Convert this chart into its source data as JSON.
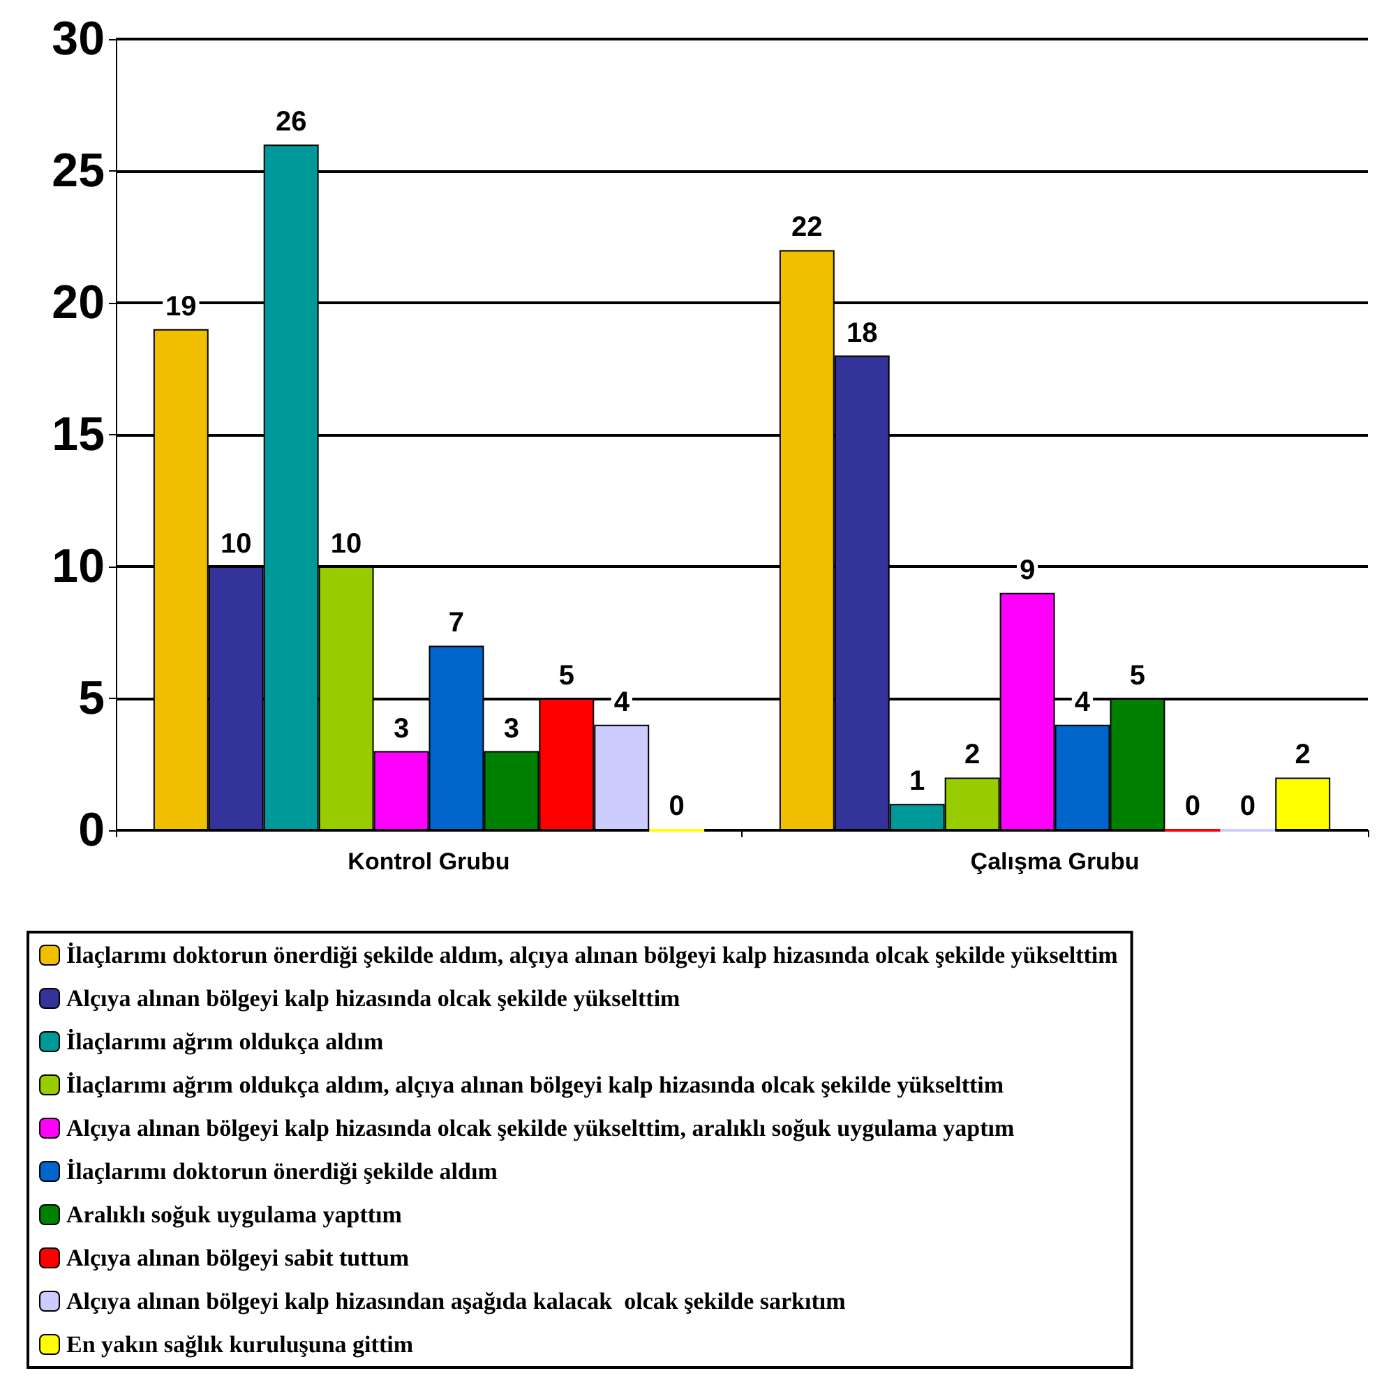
{
  "chart_data": {
    "type": "bar",
    "categories": [
      "Kontrol Grubu",
      "Çalışma Grubu"
    ],
    "series": [
      {
        "name": "İlaçlarımı doktorun önerdiği şekilde aldım, alçıya alınan bölgeyi kalp hizasında olcak şekilde yükselttim",
        "color": "#f0c000",
        "values": [
          19,
          22
        ]
      },
      {
        "name": "Alçıya alınan bölgeyi kalp hizasında olcak şekilde yükselttim",
        "color": "#333399",
        "values": [
          10,
          18
        ]
      },
      {
        "name": "İlaçlarımı ağrım oldukça aldım",
        "color": "#009999",
        "values": [
          26,
          1
        ]
      },
      {
        "name": "İlaçlarımı ağrım oldukça aldım, alçıya alınan bölgeyi kalp hizasında olcak şekilde yükselttim",
        "color": "#99cc00",
        "values": [
          10,
          2
        ]
      },
      {
        "name": "Alçıya alınan bölgeyi kalp hizasında olcak şekilde yükselttim, aralıklı soğuk uygulama yaptım",
        "color": "#ff00ff",
        "values": [
          3,
          9
        ]
      },
      {
        "name": "İlaçlarımı doktorun önerdiği şekilde aldım",
        "color": "#0066cc",
        "values": [
          7,
          4
        ]
      },
      {
        "name": "Aralıklı soğuk uygulama yapttım",
        "color": "#008000",
        "values": [
          3,
          5
        ]
      },
      {
        "name": "Alçıya alınan bölgeyi sabit tuttum",
        "color": "#ff0000",
        "values": [
          5,
          0
        ]
      },
      {
        "name": "Alçıya alınan bölgeyi kalp hizasından aşağıda kalacak  olcak şekilde sarkıtım",
        "color": "#ccccff",
        "values": [
          4,
          0
        ]
      },
      {
        "name": "En yakın sağlık kuruluşuna gittim",
        "color": "#ffff00",
        "values": [
          0,
          2
        ]
      }
    ],
    "ylim": [
      0,
      30
    ],
    "yticks": [
      0,
      5,
      10,
      15,
      20,
      25,
      30
    ],
    "grid": "y",
    "legend": "bottom",
    "data_labels": true
  }
}
